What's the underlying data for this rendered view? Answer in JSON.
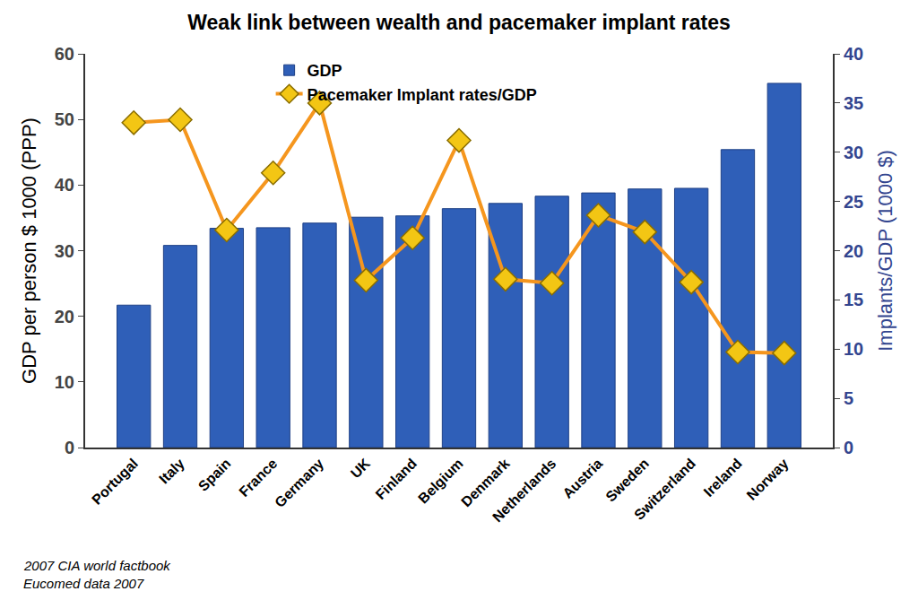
{
  "chart_data": {
    "type": "bar",
    "title": "Weak link between wealth and pacemaker implant rates",
    "y_label": "GDP per person $ 1000 (PPP)",
    "y2_label": "Implants/GDP (1000 $)",
    "annotations": [
      "2007 CIA world factbook",
      "Eucomed data 2007"
    ],
    "categories": [
      "Portugal",
      "Italy",
      "Spain",
      "France",
      "Germany",
      "UK",
      "Finland",
      "Belgium",
      "Denmark",
      "Netherlands",
      "Austria",
      "Sweden",
      "Switzerland",
      "Ireland",
      "Norway"
    ],
    "series": [
      {
        "name": "GDP",
        "type": "bar",
        "color": "#2f5fb8",
        "values": [
          21.7,
          30.8,
          33.4,
          33.5,
          34.2,
          35.1,
          35.3,
          36.4,
          37.2,
          38.3,
          38.8,
          39.4,
          39.5,
          45.4,
          55.5
        ]
      },
      {
        "name": "Pacemaker Implant rates/GDP",
        "type": "line",
        "axis": "y2",
        "color": "#f5961e",
        "marker": "diamond",
        "values": [
          33.0,
          33.3,
          22.1,
          27.9,
          35.0,
          17.0,
          21.3,
          31.2,
          17.1,
          16.7,
          23.6,
          21.9,
          16.8,
          9.7,
          9.6
        ]
      }
    ],
    "ylim": [
      0,
      60
    ],
    "yticks": [
      0,
      10,
      20,
      30,
      40,
      50,
      60
    ],
    "y2lim": [
      0,
      40
    ],
    "y2ticks": [
      0,
      5,
      10,
      15,
      20,
      25,
      30,
      35,
      40
    ],
    "grid": false,
    "legend": "top",
    "data_labels": false
  }
}
